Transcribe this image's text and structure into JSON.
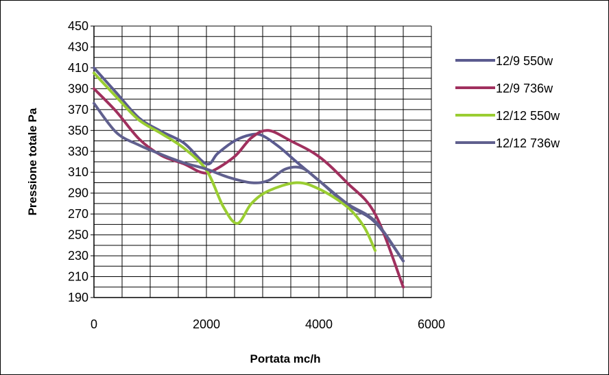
{
  "chart_data": {
    "type": "line",
    "title": "",
    "xlabel": "Portata  mc/h",
    "ylabel": "Pressione totale Pa",
    "xlim": [
      0,
      6000
    ],
    "ylim": [
      190,
      450
    ],
    "x_ticks": [
      "0",
      "2000",
      "4000",
      "6000"
    ],
    "y_ticks": [
      "450",
      "430",
      "410",
      "390",
      "370",
      "350",
      "330",
      "310",
      "290",
      "270",
      "250",
      "230",
      "210",
      "190"
    ],
    "grid": true,
    "legend_position": "right",
    "series": [
      {
        "name": "12/9 550w",
        "color": "#5B5B8F",
        "points": [
          [
            0,
            410
          ],
          [
            400,
            386
          ],
          [
            800,
            362
          ],
          [
            1200,
            349
          ],
          [
            1600,
            338
          ],
          [
            2000,
            318
          ],
          [
            2200,
            328
          ],
          [
            2500,
            340
          ],
          [
            2800,
            346
          ],
          [
            3000,
            345
          ],
          [
            3300,
            334
          ],
          [
            3600,
            320
          ],
          [
            4000,
            302
          ],
          [
            4500,
            279
          ],
          [
            5000,
            262
          ],
          [
            5500,
            225
          ]
        ]
      },
      {
        "name": "12/9 736w",
        "color": "#A0305E",
        "points": [
          [
            0,
            390
          ],
          [
            400,
            368
          ],
          [
            800,
            342
          ],
          [
            1200,
            326
          ],
          [
            1600,
            318
          ],
          [
            1900,
            310
          ],
          [
            2100,
            311
          ],
          [
            2500,
            325
          ],
          [
            2800,
            343
          ],
          [
            3100,
            350
          ],
          [
            3500,
            340
          ],
          [
            4000,
            325
          ],
          [
            4500,
            300
          ],
          [
            5000,
            270
          ],
          [
            5500,
            200
          ]
        ]
      },
      {
        "name": "12/12 550w",
        "color": "#9ACD32",
        "points": [
          [
            0,
            405
          ],
          [
            400,
            382
          ],
          [
            800,
            360
          ],
          [
            1200,
            347
          ],
          [
            1600,
            333
          ],
          [
            2000,
            312
          ],
          [
            2300,
            277
          ],
          [
            2550,
            261
          ],
          [
            2800,
            280
          ],
          [
            3100,
            292
          ],
          [
            3600,
            300
          ],
          [
            4000,
            294
          ],
          [
            4500,
            277
          ],
          [
            4800,
            258
          ],
          [
            5000,
            235
          ]
        ]
      },
      {
        "name": "12/12 736w",
        "color": "#60608E",
        "points": [
          [
            0,
            376
          ],
          [
            400,
            348
          ],
          [
            800,
            336
          ],
          [
            1200,
            327
          ],
          [
            1600,
            319
          ],
          [
            2000,
            313
          ],
          [
            2400,
            305
          ],
          [
            2800,
            300
          ],
          [
            3100,
            302
          ],
          [
            3400,
            313
          ],
          [
            3700,
            314
          ],
          [
            4000,
            302
          ],
          [
            4500,
            280
          ],
          [
            5000,
            263
          ],
          [
            5500,
            225
          ]
        ]
      }
    ]
  }
}
